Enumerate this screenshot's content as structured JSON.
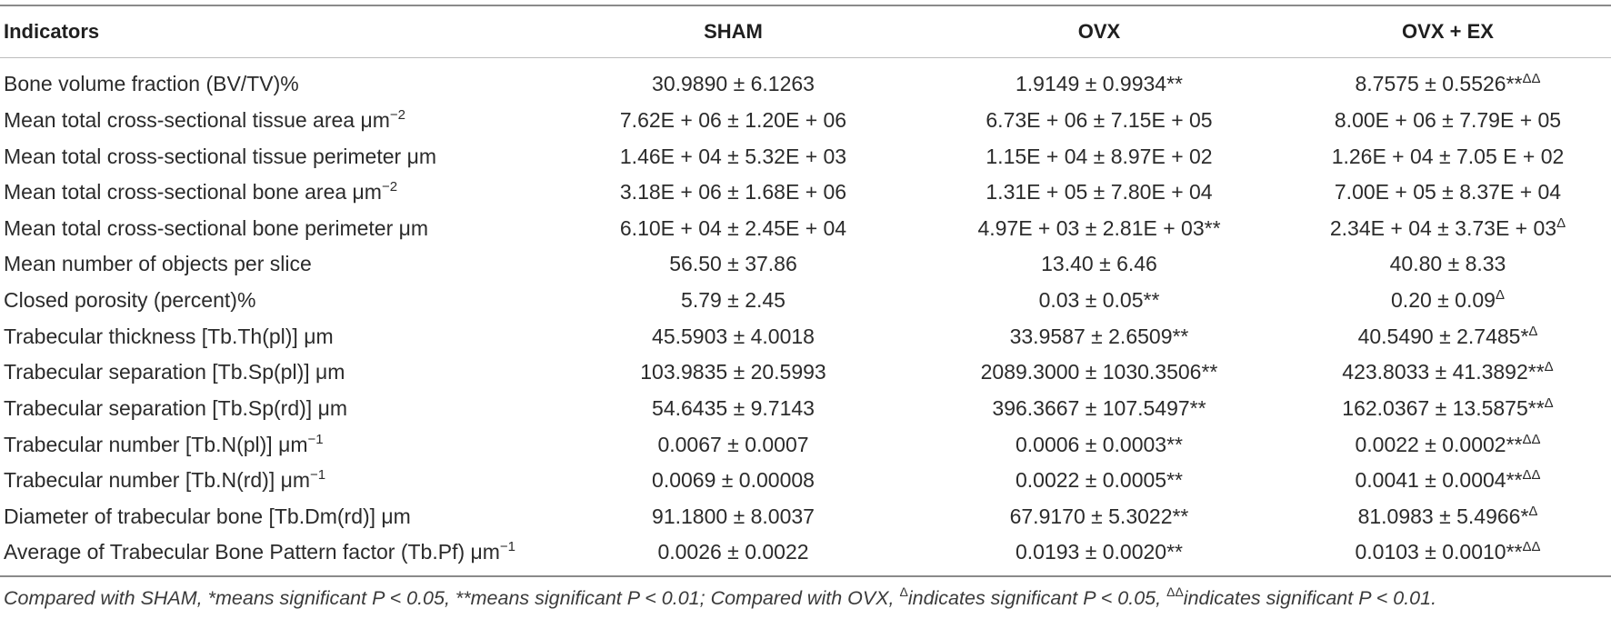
{
  "header": {
    "col1": "Indicators",
    "col2": "SHAM",
    "col3": "OVX",
    "col4": "OVX + EX"
  },
  "rows": [
    {
      "indicator": "Bone volume fraction (BV/TV)%",
      "indicator_sup": "",
      "sham": "30.9890 ± 6.1263",
      "sham_sup": "",
      "ovx": "1.9149 ± 0.9934**",
      "ovx_sup": "",
      "ovxex": "8.7575 ± 0.5526**",
      "ovxex_sup": "ΔΔ"
    },
    {
      "indicator": "Mean total cross-sectional tissue area μm",
      "indicator_sup": "−2",
      "sham": "7.62E + 06 ± 1.20E + 06",
      "sham_sup": "",
      "ovx": "6.73E + 06 ± 7.15E + 05",
      "ovx_sup": "",
      "ovxex": "8.00E + 06 ± 7.79E + 05",
      "ovxex_sup": ""
    },
    {
      "indicator": "Mean total cross-sectional tissue perimeter μm",
      "indicator_sup": "",
      "sham": "1.46E + 04 ± 5.32E + 03",
      "sham_sup": "",
      "ovx": "1.15E + 04 ± 8.97E + 02",
      "ovx_sup": "",
      "ovxex": "1.26E + 04 ± 7.05 E + 02",
      "ovxex_sup": ""
    },
    {
      "indicator": "Mean total cross-sectional bone area μm",
      "indicator_sup": "−2",
      "sham": "3.18E + 06 ± 1.68E + 06",
      "sham_sup": "",
      "ovx": "1.31E + 05 ± 7.80E + 04",
      "ovx_sup": "",
      "ovxex": "7.00E + 05 ± 8.37E + 04",
      "ovxex_sup": ""
    },
    {
      "indicator": "Mean total cross-sectional bone perimeter μm",
      "indicator_sup": "",
      "sham": "6.10E + 04 ± 2.45E + 04",
      "sham_sup": "",
      "ovx": "4.97E + 03 ± 2.81E + 03**",
      "ovx_sup": "",
      "ovxex": "2.34E + 04 ± 3.73E + 03",
      "ovxex_sup": "Δ"
    },
    {
      "indicator": "Mean number of objects per slice",
      "indicator_sup": "",
      "sham": "56.50 ± 37.86",
      "sham_sup": "",
      "ovx": "13.40 ± 6.46",
      "ovx_sup": "",
      "ovxex": "40.80 ± 8.33",
      "ovxex_sup": ""
    },
    {
      "indicator": "Closed porosity (percent)%",
      "indicator_sup": "",
      "sham": "5.79 ± 2.45",
      "sham_sup": "",
      "ovx": "0.03 ± 0.05**",
      "ovx_sup": "",
      "ovxex": "0.20 ± 0.09",
      "ovxex_sup": "Δ"
    },
    {
      "indicator": "Trabecular thickness [Tb.Th(pl)] μm",
      "indicator_sup": "",
      "sham": "45.5903 ± 4.0018",
      "sham_sup": "",
      "ovx": "33.9587 ± 2.6509**",
      "ovx_sup": "",
      "ovxex": "40.5490 ± 2.7485*",
      "ovxex_sup": "Δ"
    },
    {
      "indicator": "Trabecular separation [Tb.Sp(pl)] μm",
      "indicator_sup": "",
      "sham": "103.9835 ± 20.5993",
      "sham_sup": "",
      "ovx": "2089.3000 ± 1030.3506**",
      "ovx_sup": "",
      "ovxex": "423.8033 ± 41.3892**",
      "ovxex_sup": "Δ"
    },
    {
      "indicator": "Trabecular separation [Tb.Sp(rd)] μm",
      "indicator_sup": "",
      "sham": "54.6435 ± 9.7143",
      "sham_sup": "",
      "ovx": "396.3667 ± 107.5497**",
      "ovx_sup": "",
      "ovxex": "162.0367 ± 13.5875**",
      "ovxex_sup": "Δ"
    },
    {
      "indicator": "Trabecular number [Tb.N(pl)] μm",
      "indicator_sup": "−1",
      "sham": "0.0067 ± 0.0007",
      "sham_sup": "",
      "ovx": "0.0006 ± 0.0003**",
      "ovx_sup": "",
      "ovxex": "0.0022 ± 0.0002**",
      "ovxex_sup": "ΔΔ"
    },
    {
      "indicator": "Trabecular number [Tb.N(rd)] μm",
      "indicator_sup": "−1",
      "sham": "0.0069 ± 0.00008",
      "sham_sup": "",
      "ovx": "0.0022 ± 0.0005**",
      "ovx_sup": "",
      "ovxex": "0.0041 ± 0.0004**",
      "ovxex_sup": "ΔΔ"
    },
    {
      "indicator": "Diameter of trabecular bone [Tb.Dm(rd)] μm",
      "indicator_sup": "",
      "sham": "91.1800 ± 8.0037",
      "sham_sup": "",
      "ovx": "67.9170 ± 5.3022**",
      "ovx_sup": "",
      "ovxex": "81.0983 ± 5.4966*",
      "ovxex_sup": "Δ"
    },
    {
      "indicator": "Average of Trabecular Bone Pattern factor (Tb.Pf) μm",
      "indicator_sup": "−1",
      "sham": "0.0026 ± 0.0022",
      "sham_sup": "",
      "ovx": "0.0193 ± 0.0020**",
      "ovx_sup": "",
      "ovxex": "0.0103 ± 0.0010**",
      "ovxex_sup": "ΔΔ"
    }
  ],
  "footnote": {
    "part1": "Compared with SHAM, *means significant P < 0.05, **means significant P < 0.01; Compared with OVX, ",
    "sup1": "Δ",
    "part2": "indicates significant P < 0.05, ",
    "sup2": "ΔΔ",
    "part3": "indicates significant P < 0.01."
  }
}
